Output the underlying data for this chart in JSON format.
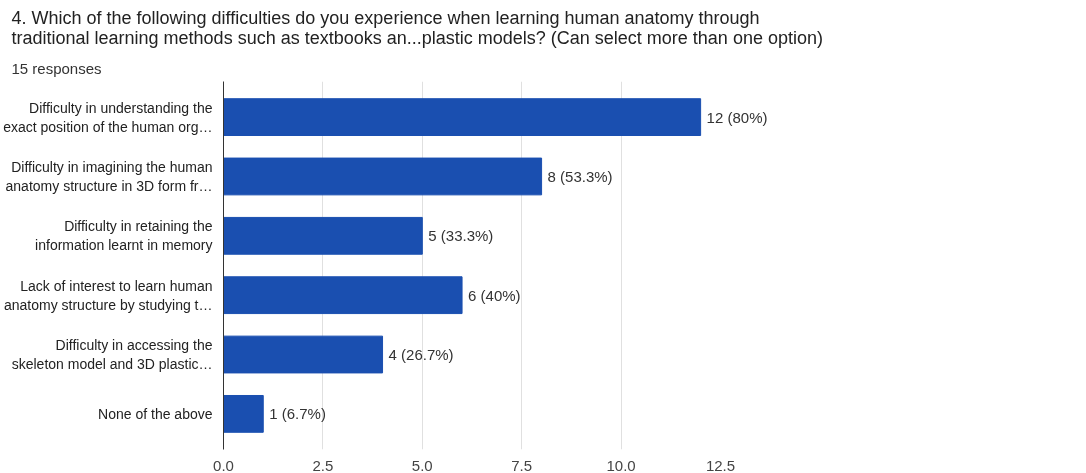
{
  "chart_data": {
    "type": "bar",
    "orientation": "horizontal",
    "title": "4. Which of the following difficulties do you experience when learning human anatomy through traditional learning methods such as textbooks an...plastic models? (Can select more than one option)",
    "subtitle": "15 responses",
    "categories": [
      "Difficulty in understanding the\nexact position of the human org…",
      "Difficulty in imagining the human\nanatomy structure in 3D form fr…",
      "Difficulty in retaining the\ninformation learnt in memory",
      "Lack of interest to learn human\nanatomy structure by studying t…",
      "Difficulty in accessing the\nskeleton model and 3D plastic…",
      "None of the above"
    ],
    "values": [
      12,
      8,
      5,
      6,
      4,
      1
    ],
    "value_labels": [
      "12 (80%)",
      "8 (53.3%)",
      "5 (33.3%)",
      "6 (40%)",
      "4 (26.7%)",
      "1 (6.7%)"
    ],
    "color": "#1a4fb0",
    "xlim": [
      0,
      12.5
    ],
    "xticks": [
      {
        "value": 0,
        "label": "0.0"
      },
      {
        "value": 2.5,
        "label": "2.5"
      },
      {
        "value": 5,
        "label": "5.0"
      },
      {
        "value": 7.5,
        "label": "7.5"
      },
      {
        "value": 10,
        "label": "10.0"
      },
      {
        "value": 12.5,
        "label": "12.5"
      }
    ],
    "grid": "x"
  }
}
